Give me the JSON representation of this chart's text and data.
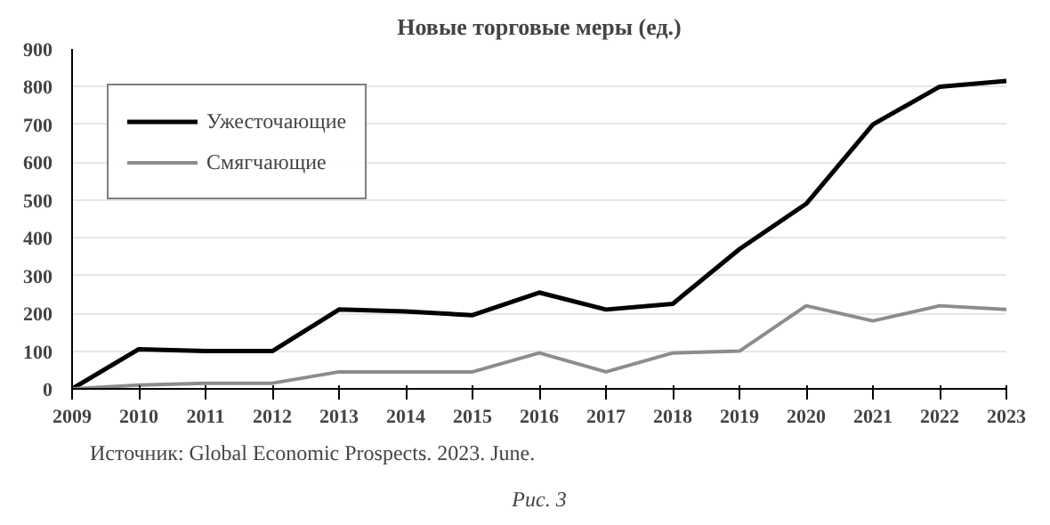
{
  "chart_data": {
    "type": "line",
    "title": "Новые торговые меры (ед.)",
    "x": [
      2009,
      2010,
      2011,
      2012,
      2013,
      2014,
      2015,
      2016,
      2017,
      2018,
      2019,
      2020,
      2021,
      2022,
      2023
    ],
    "series": [
      {
        "name": "Ужесточающие",
        "color": "#000000",
        "values": [
          0,
          105,
          100,
          100,
          210,
          205,
          195,
          255,
          210,
          225,
          370,
          490,
          700,
          800,
          815
        ]
      },
      {
        "name": "Смягчающие",
        "color": "#8c8c8c",
        "values": [
          0,
          10,
          15,
          15,
          45,
          45,
          45,
          95,
          45,
          95,
          100,
          220,
          180,
          220,
          210
        ]
      }
    ],
    "xlim": [
      2009,
      2023
    ],
    "xticks": [
      2009,
      2010,
      2011,
      2012,
      2013,
      2014,
      2015,
      2016,
      2017,
      2018,
      2019,
      2020,
      2021,
      2022,
      2023
    ],
    "ylim": [
      0,
      900
    ],
    "yticks": [
      0,
      100,
      200,
      300,
      400,
      500,
      600,
      700,
      800,
      900
    ],
    "grid": "y",
    "legend": "top left",
    "marker": "none",
    "line_style": "solid",
    "annotations": [
      "Источник: Global Economic Prospects. 2023. June.",
      "Рис. 3"
    ]
  }
}
